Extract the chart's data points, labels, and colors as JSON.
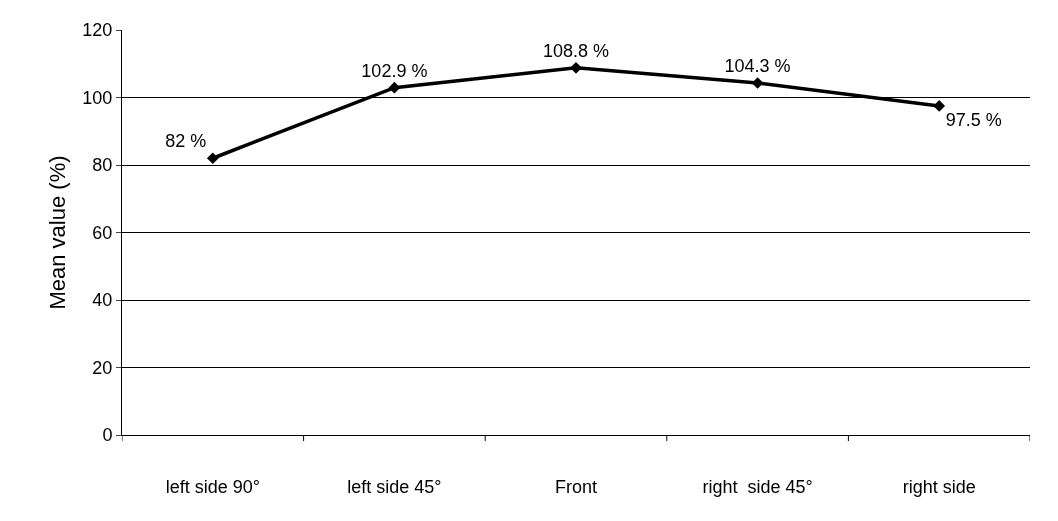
{
  "chart_data": {
    "type": "line",
    "ylabel": "Mean value (%)",
    "categories": [
      "left side 90°",
      "left side 45°",
      "Front",
      "right  side 45°",
      "right side"
    ],
    "values": [
      82,
      102.9,
      108.8,
      104.3,
      97.5
    ],
    "value_labels": [
      "82 %",
      "102.9 %",
      "108.8 %",
      "104.3 %",
      "97.5 %"
    ],
    "color": "#000000",
    "marker": "diamond",
    "line_style": "solid",
    "ylim": [
      0,
      120
    ],
    "yticks": [
      0,
      20,
      40,
      60,
      80,
      100,
      120
    ],
    "grid": "y",
    "legend": false
  }
}
